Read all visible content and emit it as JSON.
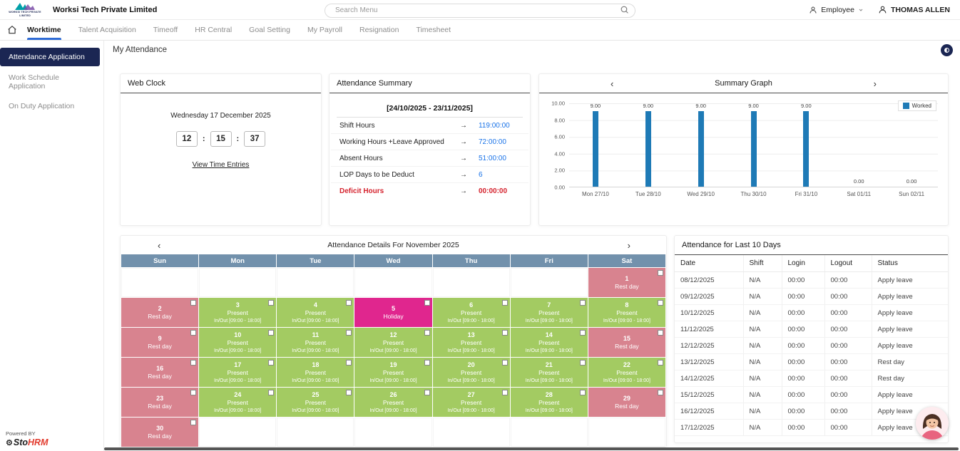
{
  "header": {
    "logo_text": "WORKSI TECH PRIVATE LIMITED",
    "company": "Worksi Tech Private Limited",
    "search_placeholder": "Search Menu",
    "employee_dropdown": "Employee",
    "user_name": "THOMAS ALLEN"
  },
  "nav": {
    "items": [
      {
        "label": "Worktime",
        "active": true
      },
      {
        "label": "Talent Acquisition",
        "active": false
      },
      {
        "label": "Timeoff",
        "active": false
      },
      {
        "label": "HR Central",
        "active": false
      },
      {
        "label": "Goal Setting",
        "active": false
      },
      {
        "label": "My Payroll",
        "active": false
      },
      {
        "label": "Resignation",
        "active": false
      },
      {
        "label": "Timesheet",
        "active": false
      }
    ]
  },
  "sidebar": {
    "items": [
      {
        "label": "Attendance Application",
        "active": true
      },
      {
        "label": "Work Schedule Application",
        "active": false
      },
      {
        "label": "On Duty Application",
        "active": false
      }
    ]
  },
  "page_title": "My Attendance",
  "symbols": {
    "prev": "‹",
    "next": "›",
    "colon": ":",
    "gear_glyph": "⚙"
  },
  "web_clock": {
    "title": "Web Clock",
    "date": "Wednesday 17 December 2025",
    "hours": "12",
    "minutes": "15",
    "seconds": "37",
    "link": "View Time Entries"
  },
  "attendance_summary": {
    "title": "Attendance Summary",
    "period": "[24/10/2025 - 23/11/2025]",
    "arrow": "→",
    "rows": [
      {
        "label": "Shift Hours",
        "value": "119:00:00"
      },
      {
        "label": "Working Hours +Leave Approved",
        "value": "72:00:00"
      },
      {
        "label": "Absent Hours",
        "value": "51:00:00"
      },
      {
        "label": "LOP Days to be Deduct",
        "value": "6"
      },
      {
        "label": "Deficit Hours",
        "value": "00:00:00",
        "deficit": true
      }
    ]
  },
  "chart_data": {
    "type": "bar",
    "title": "Summary Graph",
    "categories": [
      "Mon 27/10",
      "Tue 28/10",
      "Wed 29/10",
      "Thu 30/10",
      "Fri 31/10",
      "Sat 01/11",
      "Sun 02/11"
    ],
    "series": [
      {
        "name": "Worked",
        "values": [
          9,
          9,
          9,
          9,
          9,
          0,
          0
        ]
      }
    ],
    "value_labels": [
      "9.00",
      "9.00",
      "9.00",
      "9.00",
      "9.00",
      "0.00",
      "0.00"
    ],
    "ylim": [
      0,
      10
    ],
    "yticks": [
      "10.00",
      "8.00",
      "6.00",
      "4.00",
      "2.00",
      "0.00"
    ],
    "legend_position": "top-right",
    "grid": true,
    "bar_color": "#1e7ab6"
  },
  "calendar": {
    "title": "Attendance Details For November 2025",
    "day_headers": [
      "Sun",
      "Mon",
      "Tue",
      "Wed",
      "Thu",
      "Fri",
      "Sat"
    ],
    "present_sub": "In/Out [09:00 - 18:00]",
    "weeks": [
      [
        null,
        null,
        null,
        null,
        null,
        null,
        {
          "day": "1",
          "status": "rest",
          "label": "Rest day"
        }
      ],
      [
        {
          "day": "2",
          "status": "rest",
          "label": "Rest day"
        },
        {
          "day": "3",
          "status": "present",
          "label": "Present",
          "sub": "In/Out [09:00 - 18:00]"
        },
        {
          "day": "4",
          "status": "present",
          "label": "Present",
          "sub": "In/Out [09:00 - 18:00]"
        },
        {
          "day": "5",
          "status": "holiday",
          "label": "Holiday"
        },
        {
          "day": "6",
          "status": "present",
          "label": "Present",
          "sub": "In/Out [09:00 - 18:00]"
        },
        {
          "day": "7",
          "status": "present",
          "label": "Present",
          "sub": "In/Out [09:00 - 18:00]"
        },
        {
          "day": "8",
          "status": "present",
          "label": "Present",
          "sub": "In/Out [09:00 - 18:00]"
        }
      ],
      [
        {
          "day": "9",
          "status": "rest",
          "label": "Rest day"
        },
        {
          "day": "10",
          "status": "present",
          "label": "Present",
          "sub": "In/Out [09:00 - 18:00]"
        },
        {
          "day": "11",
          "status": "present",
          "label": "Present",
          "sub": "In/Out [09:00 - 18:00]"
        },
        {
          "day": "12",
          "status": "present",
          "label": "Present",
          "sub": "In/Out [09:00 - 18:00]"
        },
        {
          "day": "13",
          "status": "present",
          "label": "Present",
          "sub": "In/Out [09:00 - 18:00]"
        },
        {
          "day": "14",
          "status": "present",
          "label": "Present",
          "sub": "In/Out [09:00 - 18:00]"
        },
        {
          "day": "15",
          "status": "rest",
          "label": "Rest day"
        }
      ],
      [
        {
          "day": "16",
          "status": "rest",
          "label": "Rest day"
        },
        {
          "day": "17",
          "status": "present",
          "label": "Present",
          "sub": "In/Out [09:00 - 18:00]"
        },
        {
          "day": "18",
          "status": "present",
          "label": "Present",
          "sub": "In/Out [09:00 - 18:00]"
        },
        {
          "day": "19",
          "status": "present",
          "label": "Present",
          "sub": "In/Out [09:00 - 18:00]"
        },
        {
          "day": "20",
          "status": "present",
          "label": "Present",
          "sub": "In/Out [09:00 - 18:00]"
        },
        {
          "day": "21",
          "status": "present",
          "label": "Present",
          "sub": "In/Out [09:00 - 18:00]"
        },
        {
          "day": "22",
          "status": "present",
          "label": "Present",
          "sub": "In/Out [09:00 - 18:00]"
        }
      ],
      [
        {
          "day": "23",
          "status": "rest",
          "label": "Rest day"
        },
        {
          "day": "24",
          "status": "present",
          "label": "Present",
          "sub": "In/Out [09:00 - 18:00]"
        },
        {
          "day": "25",
          "status": "present",
          "label": "Present",
          "sub": "In/Out [09:00 - 18:00]"
        },
        {
          "day": "26",
          "status": "present",
          "label": "Present",
          "sub": "In/Out [09:00 - 18:00]"
        },
        {
          "day": "27",
          "status": "present",
          "label": "Present",
          "sub": "In/Out [09:00 - 18:00]"
        },
        {
          "day": "28",
          "status": "present",
          "label": "Present",
          "sub": "In/Out [09:00 - 18:00]"
        },
        {
          "day": "29",
          "status": "rest",
          "label": "Rest day"
        }
      ],
      [
        {
          "day": "30",
          "status": "rest",
          "label": "Rest day"
        },
        null,
        null,
        null,
        null,
        null,
        null
      ]
    ],
    "colors": {
      "rest": "#d8838f",
      "present": "#a3cb62",
      "holiday": "#e0268e",
      "day_header": "#7291ac"
    }
  },
  "last10": {
    "title": "Attendance for Last 10 Days",
    "columns": [
      "Date",
      "Shift",
      "Login",
      "Logout",
      "Status"
    ],
    "rows": [
      {
        "date": "08/12/2025",
        "shift": "N/A",
        "login": "00:00",
        "logout": "00:00",
        "status": "Apply leave"
      },
      {
        "date": "09/12/2025",
        "shift": "N/A",
        "login": "00:00",
        "logout": "00:00",
        "status": "Apply leave"
      },
      {
        "date": "10/12/2025",
        "shift": "N/A",
        "login": "00:00",
        "logout": "00:00",
        "status": "Apply leave"
      },
      {
        "date": "11/12/2025",
        "shift": "N/A",
        "login": "00:00",
        "logout": "00:00",
        "status": "Apply leave"
      },
      {
        "date": "12/12/2025",
        "shift": "N/A",
        "login": "00:00",
        "logout": "00:00",
        "status": "Apply leave"
      },
      {
        "date": "13/12/2025",
        "shift": "N/A",
        "login": "00:00",
        "logout": "00:00",
        "status": "Rest day"
      },
      {
        "date": "14/12/2025",
        "shift": "N/A",
        "login": "00:00",
        "logout": "00:00",
        "status": "Rest day"
      },
      {
        "date": "15/12/2025",
        "shift": "N/A",
        "login": "00:00",
        "logout": "00:00",
        "status": "Apply leave"
      },
      {
        "date": "16/12/2025",
        "shift": "N/A",
        "login": "00:00",
        "logout": "00:00",
        "status": "Apply leave"
      },
      {
        "date": "17/12/2025",
        "shift": "N/A",
        "login": "00:00",
        "logout": "00:00",
        "status": "Apply leave"
      }
    ]
  },
  "footer": {
    "powered_by": "Powered BY",
    "brand_sto": "Sto",
    "brand_hrm": "HRM"
  },
  "colors": {
    "accent_blue": "#2e6bd6",
    "value_blue": "#1a73e8",
    "deficit_red": "#d5232e",
    "sidebar_active": "#1b2653",
    "bar_blue": "#1e7ab6"
  }
}
